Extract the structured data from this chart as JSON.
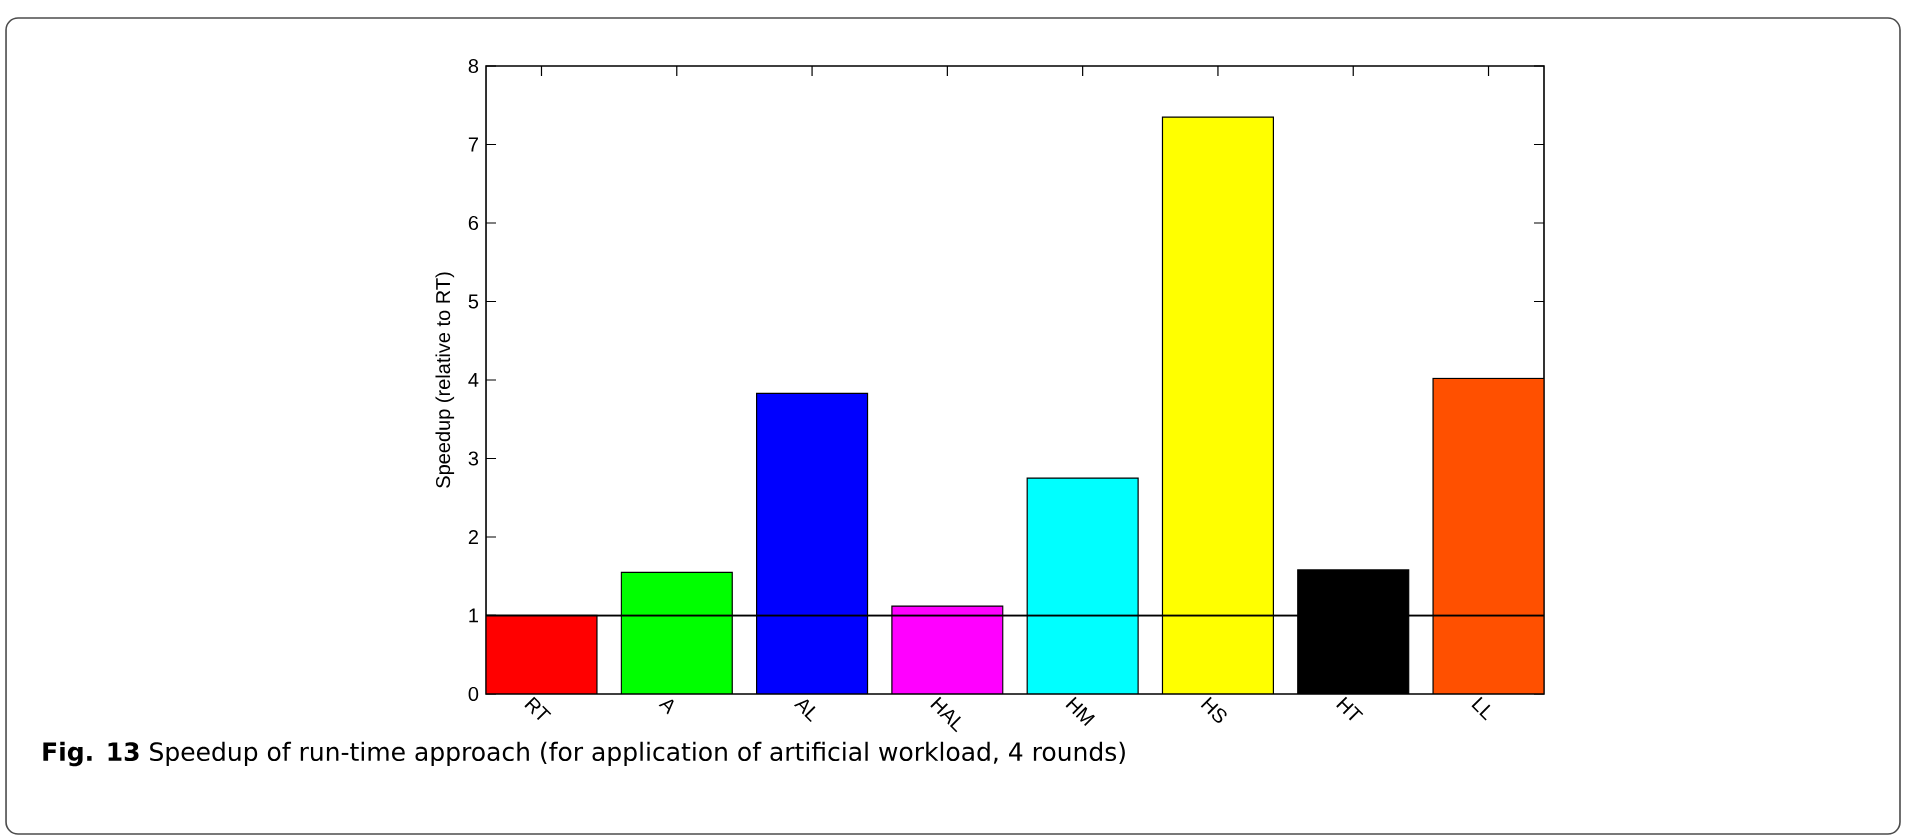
{
  "chart_data": {
    "type": "bar",
    "ylabel": "Speedup (relative to RT)",
    "categories": [
      "RT",
      "A",
      "AL",
      "HAL",
      "HM",
      "HS",
      "HT",
      "LL"
    ],
    "values": [
      1,
      1.55,
      3.83,
      1.12,
      2.75,
      7.35,
      1.58,
      4.02
    ],
    "colors": [
      "#ff0000",
      "#00ff00",
      "#0000ff",
      "#ff00ff",
      "#00ffff",
      "#ffff00",
      "#000000",
      "#ff5000"
    ],
    "ylim": [
      0,
      8
    ],
    "yticks": [
      0,
      1,
      2,
      3,
      4,
      5,
      6,
      7,
      8
    ],
    "ref_lines": [
      {
        "axis": "y",
        "value": 1,
        "color": "#000000"
      }
    ],
    "grid": false,
    "annotations": [
      "**Fig. 13** Speedup of run-time approach (for application of artificial workload, 4 rounds)"
    ]
  }
}
